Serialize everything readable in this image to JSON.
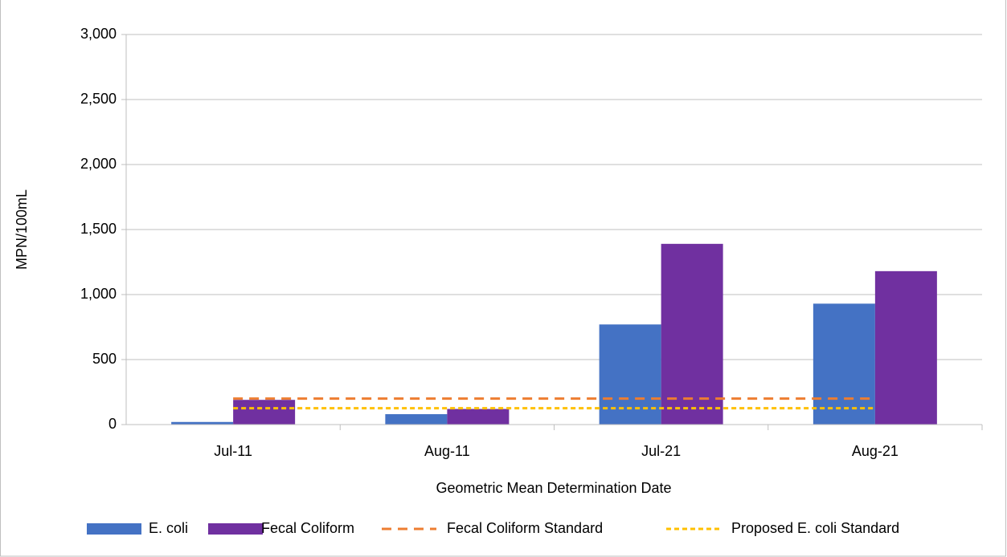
{
  "chart_data": {
    "type": "bar",
    "y_label": "MPN/100mL",
    "x_label": "Geometric Mean Determination Date",
    "categories": [
      "Jul-11",
      "Aug-11",
      "Jul-21",
      "Aug-21"
    ],
    "series": [
      {
        "name": "E. coli",
        "type": "bar",
        "color": "#4472c4",
        "values": [
          20,
          80,
          770,
          930
        ]
      },
      {
        "name": "Fecal Coliform",
        "type": "bar",
        "color": "#7030a0",
        "values": [
          190,
          120,
          1390,
          1180
        ]
      },
      {
        "name": "Fecal Coliform Standard",
        "type": "line",
        "color": "#ed7d31",
        "dash": "12 8",
        "values": [
          200,
          200,
          200,
          200
        ]
      },
      {
        "name": "Proposed E. coli Standard",
        "type": "line",
        "color": "#ffc000",
        "dash": "6 4",
        "values": [
          126,
          126,
          126,
          126
        ]
      }
    ],
    "ylim": [
      0,
      3000
    ],
    "yticks": [
      0,
      500,
      {
        "value": 1000,
        "label": "1,000"
      },
      {
        "value": 1500,
        "label": "1,500"
      },
      {
        "value": 2000,
        "label": "2,000"
      },
      {
        "value": 2500,
        "label": "2,500"
      },
      {
        "value": 3000,
        "label": "3,000"
      }
    ],
    "grid": true,
    "legend": "bottom"
  }
}
